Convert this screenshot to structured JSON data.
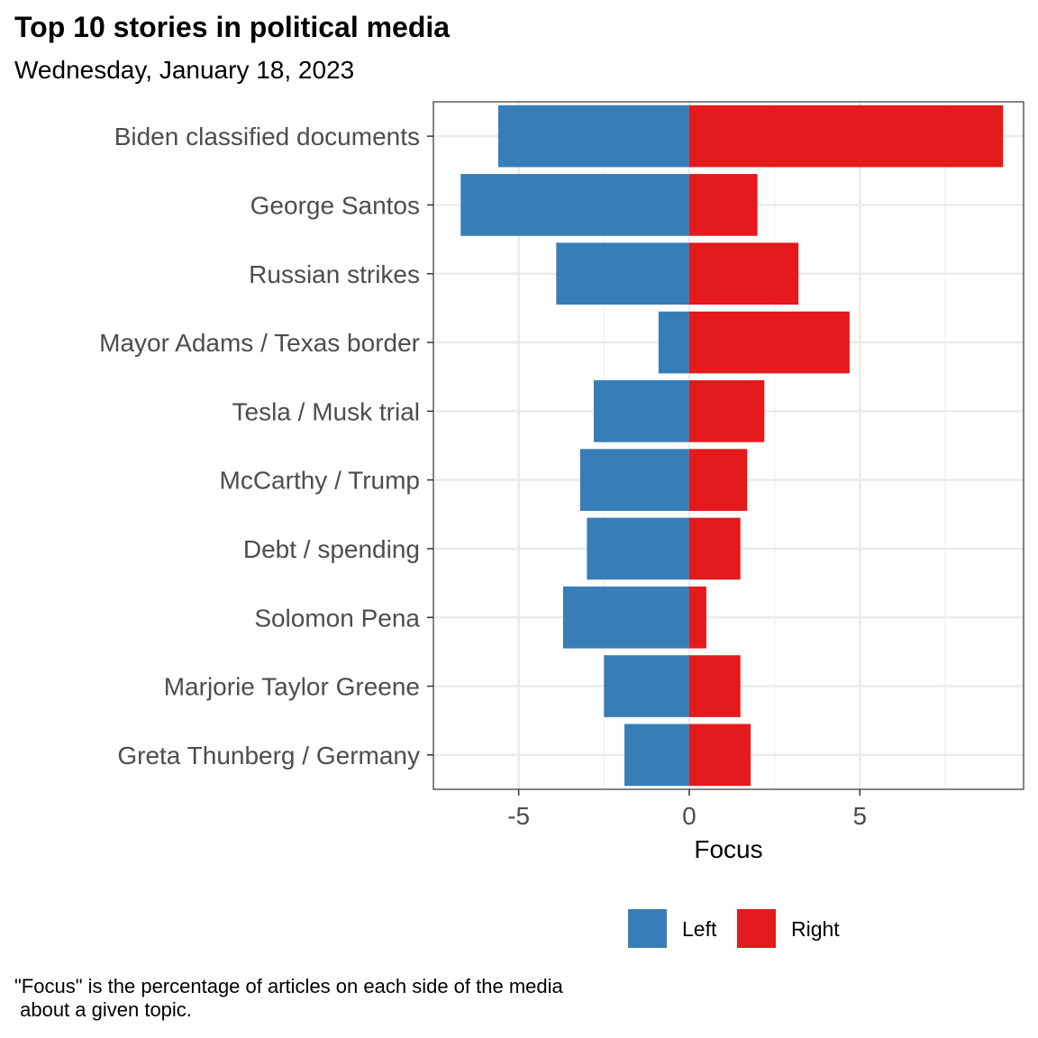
{
  "chart_data": {
    "type": "bar",
    "orientation": "horizontal",
    "stacked": "diverging",
    "title": "Top 10 stories in political media",
    "subtitle": "Wednesday, January 18, 2023",
    "xlabel": "Focus",
    "ylabel": "",
    "xlim": [
      -7.5,
      9.8
    ],
    "xticks": [
      -5,
      0,
      5
    ],
    "xtick_labels": [
      "-5",
      "0",
      "5"
    ],
    "grid": true,
    "legend_position": "bottom",
    "categories": [
      "Biden classified documents",
      "George Santos",
      "Russian strikes",
      "Mayor Adams / Texas border",
      "Tesla / Musk trial",
      "McCarthy / Trump",
      "Debt / spending",
      "Solomon Pena",
      "Marjorie Taylor Greene",
      "Greta Thunberg / Germany"
    ],
    "series": [
      {
        "name": "Left",
        "color": "#377eb8",
        "values": [
          -5.6,
          -6.7,
          -3.9,
          -0.9,
          -2.8,
          -3.2,
          -3.0,
          -3.7,
          -2.5,
          -1.9
        ]
      },
      {
        "name": "Right",
        "color": "#e41a1c",
        "values": [
          9.2,
          2.0,
          3.2,
          4.7,
          2.2,
          1.7,
          1.5,
          0.5,
          1.5,
          1.8
        ]
      }
    ],
    "caption": "\"Focus\" is the percentage of articles on each side of the media\n about a given topic."
  }
}
